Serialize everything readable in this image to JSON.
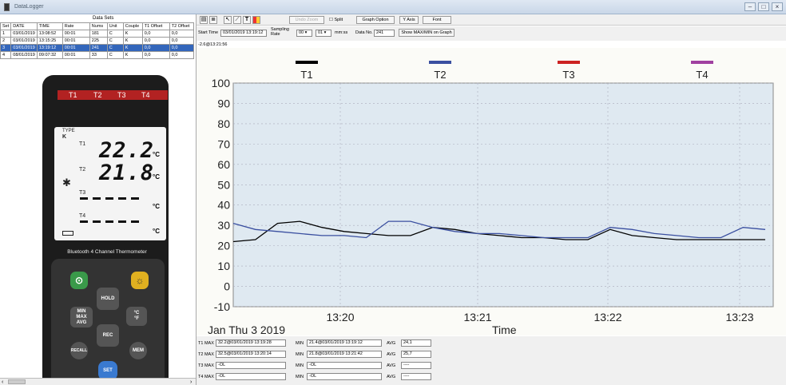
{
  "window": {
    "title": "DataLogger"
  },
  "datasets": {
    "title": "Data Sets",
    "columns": [
      "Set",
      "DATE",
      "TIME",
      "Rate",
      "Nums",
      "Unit",
      "Couple",
      "T1 Offset",
      "T2 Offset"
    ],
    "rows": [
      [
        "1",
        "03/01/2019",
        "13:08:52",
        "00:01",
        "181",
        "C",
        "K",
        "0,0",
        "0,0"
      ],
      [
        "2",
        "03/01/2019",
        "13:15:25",
        "00:01",
        "225",
        "C",
        "K",
        "0,0",
        "0,0"
      ],
      [
        "3",
        "03/01/2019",
        "13:19:12",
        "00:01",
        "241",
        "C",
        "K",
        "0,0",
        "0,0"
      ],
      [
        "4",
        "08/01/2019",
        "09:07:32",
        "00:01",
        "33",
        "C",
        "K",
        "0,0",
        "0,0"
      ]
    ],
    "selected_row": 2
  },
  "device": {
    "channels": [
      "T1",
      "T2",
      "T3",
      "T4"
    ],
    "type_label": "TYPE",
    "type_value": "K",
    "readings": [
      "22.2",
      "21.8"
    ],
    "unit": "°C",
    "label": "Bluetooth 4 Channel Thermometer",
    "keys": {
      "hold": "HOLD",
      "min_max_avg": "MIN\nMAX\nAVG",
      "unit": "°C\n°F",
      "rec": "REC",
      "recall": "RECALL",
      "mem": "MEM",
      "set": "SET"
    }
  },
  "toolbar": {
    "undo_zoom": "Undo Zoom",
    "split": "Split",
    "graph_option": "Graph Option",
    "y_axis": "Y Axis",
    "font": "Font"
  },
  "controls": {
    "start_time_label": "Start Time",
    "start_time_value": "03/01/2019 13:19:12",
    "sampling_rate_label": "Sampling Rate",
    "rate_min": "00",
    "rate_sec": "01",
    "rate_unit": "mm:ss",
    "data_no_label": "Data No.",
    "data_no_value": "241",
    "show_maxmin": "Show MAX/MIN on Graph"
  },
  "cursor_readout": "-2.6@13:21:56",
  "chart_data": {
    "type": "line",
    "xlabel": "Time",
    "date_label": "Jan Thu 3 2019",
    "x_ticks": [
      "13:20",
      "13:21",
      "13:22",
      "13:23"
    ],
    "y_ticks": [
      100,
      90,
      80,
      70,
      60,
      50,
      40,
      30,
      20,
      10,
      0,
      -10
    ],
    "ylim": [
      -10,
      100
    ],
    "grid": true,
    "legend_position": "top",
    "series": [
      {
        "name": "T1",
        "color": "#000000",
        "values": [
          22,
          23,
          31,
          32,
          29,
          27,
          26,
          25,
          25,
          29,
          28,
          26,
          25,
          24,
          24,
          23,
          23,
          28,
          25,
          24,
          23,
          23,
          23,
          23,
          23
        ]
      },
      {
        "name": "T2",
        "color": "#3a4fa0",
        "values": [
          31,
          28,
          27,
          26,
          25,
          25,
          24,
          32,
          32,
          29,
          27,
          26,
          26,
          25,
          24,
          24,
          24,
          29,
          28,
          26,
          25,
          24,
          24,
          29,
          28
        ]
      },
      {
        "name": "T3",
        "color": "#cc2222",
        "values": []
      },
      {
        "name": "T4",
        "color": "#a040a0",
        "values": []
      }
    ]
  },
  "stats": [
    {
      "label": "T1 MAX",
      "max": "32.2@03/01/2019 13:19:28",
      "min_label": "MIN",
      "min": "21.4@03/01/2019 13:19:12",
      "avg_label": "AVG",
      "avg": "24,1"
    },
    {
      "label": "T2 MAX",
      "max": "32.5@03/01/2019 13:20:14",
      "min_label": "MIN",
      "min": "21.8@03/01/2019 13:21:42",
      "avg_label": "AVG",
      "avg": "25,7"
    },
    {
      "label": "T3 MAX",
      "max": "-OL",
      "min_label": "MIN",
      "min": "-OL",
      "avg_label": "AVG",
      "avg": "----"
    },
    {
      "label": "T4 MAX",
      "max": "-OL",
      "min_label": "MIN",
      "min": "-OL",
      "avg_label": "AVG",
      "avg": "----"
    }
  ]
}
